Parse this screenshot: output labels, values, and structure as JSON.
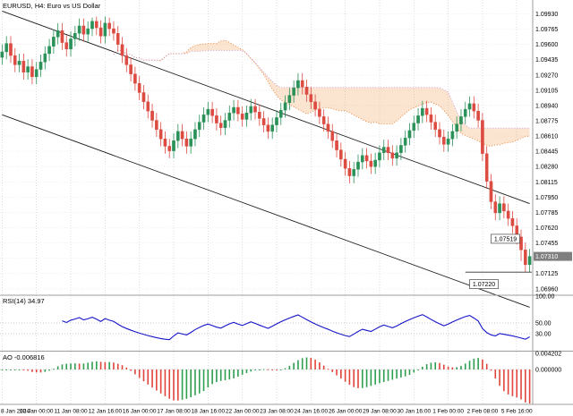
{
  "window": {
    "title": "EURUSD, H4: Euro vs US Dollar"
  },
  "panes": {
    "main_title": "EURUSD, H4: Euro vs US Dollar",
    "rsi_title": "RSI(14) 34.97",
    "ao_title": "AO -0.006816"
  },
  "colors": {
    "up": "#2a9158",
    "down": "#dc4b41",
    "rsi_line": "#1515c8",
    "cloud_fill": "#f0a05a",
    "cloud_border_a": "#e8853d",
    "cloud_border_b": "#cf9fd8",
    "grid": "#dcdcdc",
    "grid_h": "#eeeeee",
    "channel": "#1a1a1a",
    "ao_up": "#2e9e4f",
    "ao_down": "#e0443a",
    "price_tag_bg": "#7f7f7f",
    "separator": "#9c9c9c",
    "text": "#000000"
  },
  "chart_data": {
    "type": "candlestick",
    "symbol": "EURUSD",
    "timeframe": "H4",
    "y_axis": {
      "min": 1.069,
      "max": 1.1008,
      "tick_labels": [
        "1.09930",
        "1.09765",
        "1.09600",
        "1.09435",
        "1.09270",
        "1.09105",
        "1.08940",
        "1.08775",
        "1.08610",
        "1.08445",
        "1.08280",
        "1.08115",
        "1.07950",
        "1.07785",
        "1.07620",
        "1.07455",
        "1.07290",
        "1.07125",
        "1.06960"
      ]
    },
    "x_axis": {
      "bars_per_tick": 8,
      "tick_labels": [
        "8 Jan 2024",
        "10 Jan 00:00",
        "11 Jan 08:00",
        "12 Jan 16:00",
        "16 Jan 00:00",
        "17 Jan 08:00",
        "18 Jan 16:00",
        "22 Jan 00:00",
        "23 Jan 08:00",
        "24 Jan 16:00",
        "26 Jan 00:00",
        "29 Jan 08:00",
        "30 Jan 16:00",
        "1 Feb 00:00",
        "2 Feb 08:00",
        "5 Feb 16:00"
      ]
    },
    "candles": [
      [
        1.0946,
        1.096,
        1.0938,
        1.0952
      ],
      [
        1.0952,
        1.0969,
        1.0944,
        1.0961
      ],
      [
        1.0961,
        1.0969,
        1.094,
        1.0948
      ],
      [
        1.0948,
        1.0956,
        1.093,
        1.0938
      ],
      [
        1.0938,
        1.095,
        1.093,
        1.0942
      ],
      [
        1.0942,
        1.095,
        1.0922,
        1.093
      ],
      [
        1.093,
        1.0944,
        1.0922,
        1.0936
      ],
      [
        1.0936,
        1.0944,
        1.0917,
        1.0925
      ],
      [
        1.0925,
        1.0941,
        1.0917,
        1.0933
      ],
      [
        1.0933,
        1.0949,
        1.0925,
        1.0941
      ],
      [
        1.0941,
        1.0958,
        1.0933,
        1.095
      ],
      [
        1.095,
        1.0966,
        1.0942,
        1.0958
      ],
      [
        1.0958,
        1.0976,
        1.095,
        1.0968
      ],
      [
        1.0968,
        1.0983,
        1.096,
        1.0975
      ],
      [
        1.0975,
        1.0983,
        1.0954,
        1.0962
      ],
      [
        1.0962,
        1.097,
        1.0947,
        1.0955
      ],
      [
        1.0955,
        1.0974,
        1.0947,
        1.0966
      ],
      [
        1.0966,
        1.098,
        1.0958,
        1.0972
      ],
      [
        1.0972,
        1.0988,
        1.0964,
        1.098
      ],
      [
        1.098,
        1.0988,
        1.0963,
        1.0971
      ],
      [
        1.0971,
        1.0985,
        1.0963,
        1.0977
      ],
      [
        1.0977,
        1.0989,
        1.0969,
        1.0985
      ],
      [
        1.0985,
        1.099,
        1.097,
        1.0978
      ],
      [
        1.0978,
        1.0986,
        1.0961,
        1.0969
      ],
      [
        1.0969,
        1.099,
        1.0961,
        1.0983
      ],
      [
        1.0983,
        1.0989,
        1.0969,
        1.0977
      ],
      [
        1.0977,
        1.0985,
        1.0964,
        1.0972
      ],
      [
        1.0972,
        1.098,
        1.0952,
        1.096
      ],
      [
        1.096,
        1.0968,
        1.094,
        1.0948
      ],
      [
        1.0948,
        1.0956,
        1.093,
        1.0938
      ],
      [
        1.0938,
        1.0946,
        1.092,
        1.0928
      ],
      [
        1.0928,
        1.0936,
        1.091,
        1.0918
      ],
      [
        1.0918,
        1.0926,
        1.09,
        1.0908
      ],
      [
        1.0908,
        1.0916,
        1.089,
        1.0898
      ],
      [
        1.0898,
        1.0906,
        1.088,
        1.0888
      ],
      [
        1.0888,
        1.0896,
        1.087,
        1.0878
      ],
      [
        1.0878,
        1.0886,
        1.086,
        1.0868
      ],
      [
        1.0868,
        1.0876,
        1.085,
        1.0858
      ],
      [
        1.0858,
        1.0866,
        1.0842,
        1.085
      ],
      [
        1.085,
        1.0858,
        1.0837,
        1.0845
      ],
      [
        1.0845,
        1.0864,
        1.0837,
        1.0856
      ],
      [
        1.0856,
        1.0874,
        1.0848,
        1.0866
      ],
      [
        1.0866,
        1.0874,
        1.085,
        1.0858
      ],
      [
        1.0858,
        1.0866,
        1.0842,
        1.085
      ],
      [
        1.085,
        1.0866,
        1.0842,
        1.0858
      ],
      [
        1.0858,
        1.0876,
        1.085,
        1.0868
      ],
      [
        1.0868,
        1.0884,
        1.086,
        1.0876
      ],
      [
        1.0876,
        1.0892,
        1.0868,
        1.0884
      ],
      [
        1.0884,
        1.0898,
        1.0876,
        1.089
      ],
      [
        1.089,
        1.0898,
        1.0875,
        1.0883
      ],
      [
        1.0883,
        1.0891,
        1.0867,
        1.0875
      ],
      [
        1.0875,
        1.0883,
        1.0862,
        1.087
      ],
      [
        1.087,
        1.0886,
        1.0862,
        1.0878
      ],
      [
        1.0878,
        1.0894,
        1.087,
        1.0886
      ],
      [
        1.0886,
        1.09,
        1.0878,
        1.0892
      ],
      [
        1.0892,
        1.09,
        1.0877,
        1.0885
      ],
      [
        1.0885,
        1.0893,
        1.0871,
        1.0879
      ],
      [
        1.0879,
        1.0894,
        1.0871,
        1.0886
      ],
      [
        1.0886,
        1.0901,
        1.0878,
        1.0893
      ],
      [
        1.0893,
        1.0901,
        1.0879,
        1.0887
      ],
      [
        1.0887,
        1.0895,
        1.0872,
        1.088
      ],
      [
        1.088,
        1.0888,
        1.0865,
        1.0873
      ],
      [
        1.0873,
        1.0881,
        1.0858,
        1.0866
      ],
      [
        1.0866,
        1.0881,
        1.0858,
        1.0873
      ],
      [
        1.0873,
        1.0889,
        1.0865,
        1.0881
      ],
      [
        1.0881,
        1.0897,
        1.0873,
        1.0889
      ],
      [
        1.0889,
        1.0905,
        1.0881,
        1.0897
      ],
      [
        1.0897,
        1.0913,
        1.0889,
        1.0905
      ],
      [
        1.0905,
        1.0921,
        1.0897,
        1.0913
      ],
      [
        1.0913,
        1.0929,
        1.0905,
        1.0921
      ],
      [
        1.0921,
        1.0929,
        1.0906,
        1.0914
      ],
      [
        1.0914,
        1.0922,
        1.0898,
        1.0906
      ],
      [
        1.0906,
        1.0914,
        1.089,
        1.0898
      ],
      [
        1.0898,
        1.0906,
        1.0882,
        1.089
      ],
      [
        1.089,
        1.0898,
        1.0874,
        1.0882
      ],
      [
        1.0882,
        1.089,
        1.0866,
        1.0874
      ],
      [
        1.0874,
        1.0882,
        1.0858,
        1.0866
      ],
      [
        1.0866,
        1.0874,
        1.0848,
        1.0856
      ],
      [
        1.0856,
        1.0864,
        1.0838,
        1.0846
      ],
      [
        1.0846,
        1.0854,
        1.0828,
        1.0836
      ],
      [
        1.0836,
        1.0844,
        1.0818,
        1.0826
      ],
      [
        1.0826,
        1.0834,
        1.081,
        1.0818
      ],
      [
        1.0818,
        1.0833,
        1.081,
        1.0825
      ],
      [
        1.0825,
        1.0841,
        1.0817,
        1.0833
      ],
      [
        1.0833,
        1.0848,
        1.0825,
        1.084
      ],
      [
        1.084,
        1.0848,
        1.0826,
        1.0834
      ],
      [
        1.0834,
        1.0842,
        1.082,
        1.0828
      ],
      [
        1.0828,
        1.0843,
        1.082,
        1.0835
      ],
      [
        1.0835,
        1.0851,
        1.0827,
        1.0843
      ],
      [
        1.0843,
        1.0857,
        1.0835,
        1.0849
      ],
      [
        1.0849,
        1.0857,
        1.0835,
        1.0843
      ],
      [
        1.0843,
        1.0851,
        1.0829,
        1.0837
      ],
      [
        1.0837,
        1.0851,
        1.0829,
        1.0843
      ],
      [
        1.0843,
        1.0859,
        1.0835,
        1.0851
      ],
      [
        1.0851,
        1.0867,
        1.0843,
        1.0859
      ],
      [
        1.0859,
        1.0875,
        1.0851,
        1.0867
      ],
      [
        1.0867,
        1.0883,
        1.0859,
        1.0875
      ],
      [
        1.0875,
        1.0891,
        1.0867,
        1.0883
      ],
      [
        1.0883,
        1.0899,
        1.0875,
        1.0891
      ],
      [
        1.0891,
        1.0899,
        1.0876,
        1.0884
      ],
      [
        1.0884,
        1.0892,
        1.0868,
        1.0876
      ],
      [
        1.0876,
        1.0884,
        1.086,
        1.0868
      ],
      [
        1.0868,
        1.0876,
        1.0852,
        1.086
      ],
      [
        1.086,
        1.0868,
        1.0844,
        1.0852
      ],
      [
        1.0852,
        1.0866,
        1.0844,
        1.0858
      ],
      [
        1.0858,
        1.0874,
        1.085,
        1.0866
      ],
      [
        1.0866,
        1.0882,
        1.0858,
        1.0874
      ],
      [
        1.0874,
        1.089,
        1.0866,
        1.0882
      ],
      [
        1.0882,
        1.0898,
        1.0874,
        1.089
      ],
      [
        1.089,
        1.0904,
        1.0882,
        1.0896
      ],
      [
        1.0896,
        1.0904,
        1.088,
        1.0888
      ],
      [
        1.0888,
        1.0896,
        1.087,
        1.0878
      ],
      [
        1.0878,
        1.0886,
        1.0834,
        1.0842
      ],
      [
        1.0842,
        1.085,
        1.0804,
        1.0812
      ],
      [
        1.0812,
        1.082,
        1.0782,
        1.079
      ],
      [
        1.079,
        1.0798,
        1.077,
        1.0778
      ],
      [
        1.0778,
        1.0796,
        1.077,
        1.0788
      ],
      [
        1.0788,
        1.0796,
        1.0772,
        1.078
      ],
      [
        1.078,
        1.0788,
        1.0764,
        1.0772
      ],
      [
        1.0772,
        1.078,
        1.0756,
        1.0764
      ],
      [
        1.0764,
        1.0772,
        1.0744,
        1.0752
      ],
      [
        1.0752,
        1.076,
        1.0726,
        1.0738
      ],
      [
        1.0738,
        1.0746,
        1.0714,
        1.0722
      ],
      [
        1.0722,
        1.0739,
        1.0714,
        1.0731
      ]
    ],
    "overlays": {
      "channel_upper": [
        [
          0,
          1.0996
        ],
        [
          123,
          1.0788
        ]
      ],
      "channel_lower": [
        [
          0,
          1.0884
        ],
        [
          123,
          1.0676
        ]
      ],
      "ichimoku": {
        "tenkan": 9,
        "kijun": 26,
        "senkou": 52,
        "shift": 26
      }
    },
    "rsi": {
      "period": 14,
      "current": 34.97,
      "ylim": [
        0,
        100
      ],
      "levels": [
        50,
        30
      ],
      "tick_labels": [
        "100.00",
        "50.00",
        "30.00"
      ]
    },
    "ao": {
      "current": -0.006816,
      "ylim": [
        -0.0088,
        0.0044
      ],
      "tick_labels": [
        "0.004202",
        "0.000000"
      ]
    },
    "annotations": {
      "price_labels": [
        {
          "text": "1.07519",
          "bar": 114,
          "price": 1.075
        },
        {
          "text": "1.07220",
          "bar": 109,
          "price": 1.0701
        }
      ],
      "hline": {
        "price": 1.0714,
        "from_bar": 108
      },
      "current_price_tag": "1.07310"
    }
  }
}
